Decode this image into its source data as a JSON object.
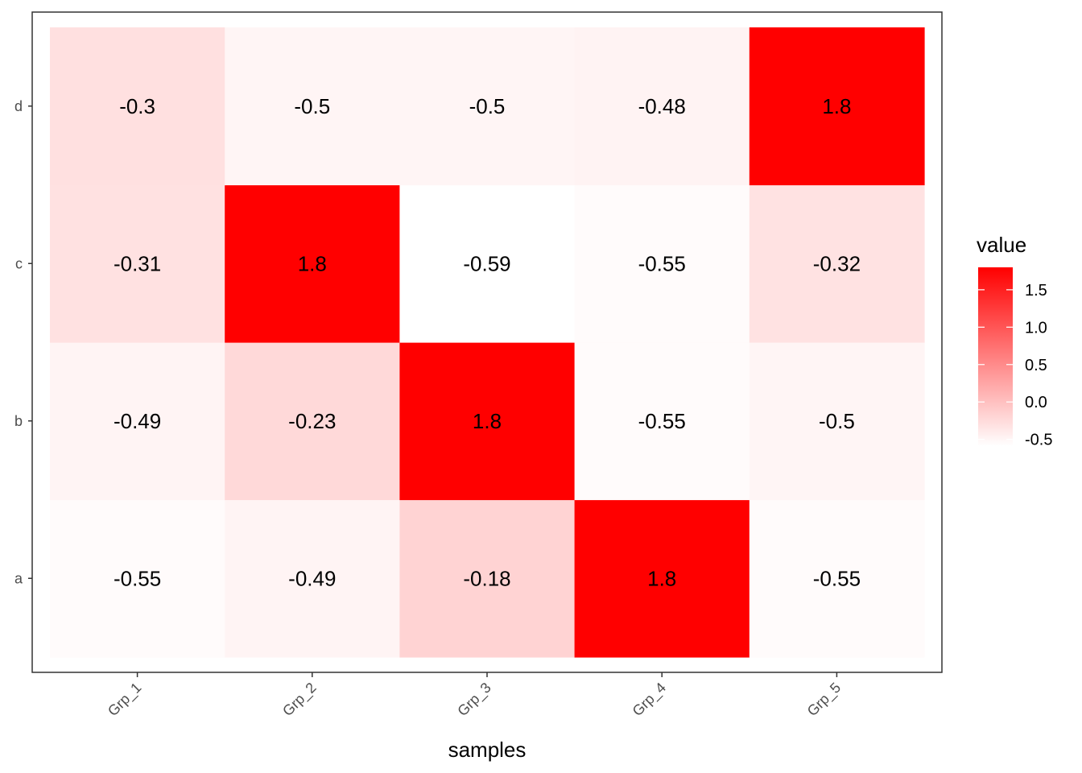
{
  "chart_data": {
    "type": "heatmap",
    "x_categories": [
      "Grp_1",
      "Grp_2",
      "Grp_3",
      "Grp_4",
      "Grp_5"
    ],
    "y_categories": [
      "a",
      "b",
      "c",
      "d"
    ],
    "cells": [
      {
        "x": "Grp_1",
        "y": "a",
        "value": -0.55,
        "label": "-0.55"
      },
      {
        "x": "Grp_2",
        "y": "a",
        "value": -0.49,
        "label": "-0.49"
      },
      {
        "x": "Grp_3",
        "y": "a",
        "value": -0.18,
        "label": "-0.18"
      },
      {
        "x": "Grp_4",
        "y": "a",
        "value": 1.8,
        "label": "1.8"
      },
      {
        "x": "Grp_5",
        "y": "a",
        "value": -0.55,
        "label": "-0.55"
      },
      {
        "x": "Grp_1",
        "y": "b",
        "value": -0.49,
        "label": "-0.49"
      },
      {
        "x": "Grp_2",
        "y": "b",
        "value": -0.23,
        "label": "-0.23"
      },
      {
        "x": "Grp_3",
        "y": "b",
        "value": 1.8,
        "label": "1.8"
      },
      {
        "x": "Grp_4",
        "y": "b",
        "value": -0.55,
        "label": "-0.55"
      },
      {
        "x": "Grp_5",
        "y": "b",
        "value": -0.5,
        "label": "-0.5"
      },
      {
        "x": "Grp_1",
        "y": "c",
        "value": -0.31,
        "label": "-0.31"
      },
      {
        "x": "Grp_2",
        "y": "c",
        "value": 1.8,
        "label": "1.8"
      },
      {
        "x": "Grp_3",
        "y": "c",
        "value": -0.59,
        "label": "-0.59"
      },
      {
        "x": "Grp_4",
        "y": "c",
        "value": -0.55,
        "label": "-0.55"
      },
      {
        "x": "Grp_5",
        "y": "c",
        "value": -0.32,
        "label": "-0.32"
      },
      {
        "x": "Grp_1",
        "y": "d",
        "value": -0.3,
        "label": "-0.3"
      },
      {
        "x": "Grp_2",
        "y": "d",
        "value": -0.5,
        "label": "-0.5"
      },
      {
        "x": "Grp_3",
        "y": "d",
        "value": -0.5,
        "label": "-0.5"
      },
      {
        "x": "Grp_4",
        "y": "d",
        "value": -0.48,
        "label": "-0.48"
      },
      {
        "x": "Grp_5",
        "y": "d",
        "value": 1.8,
        "label": "1.8"
      }
    ],
    "title": "",
    "xlabel": "samples",
    "ylabel": "",
    "legend": {
      "title": "value",
      "position": "right",
      "ticks": [
        1.5,
        1.0,
        0.5,
        0.0,
        -0.5
      ],
      "tick_labels": [
        "1.5",
        "1.0",
        "0.5",
        "0.0",
        "-0.5"
      ]
    },
    "color_scale": {
      "low": "#ffffff",
      "high": "#ff0000",
      "min": -0.59,
      "max": 1.8
    },
    "grid": false
  }
}
